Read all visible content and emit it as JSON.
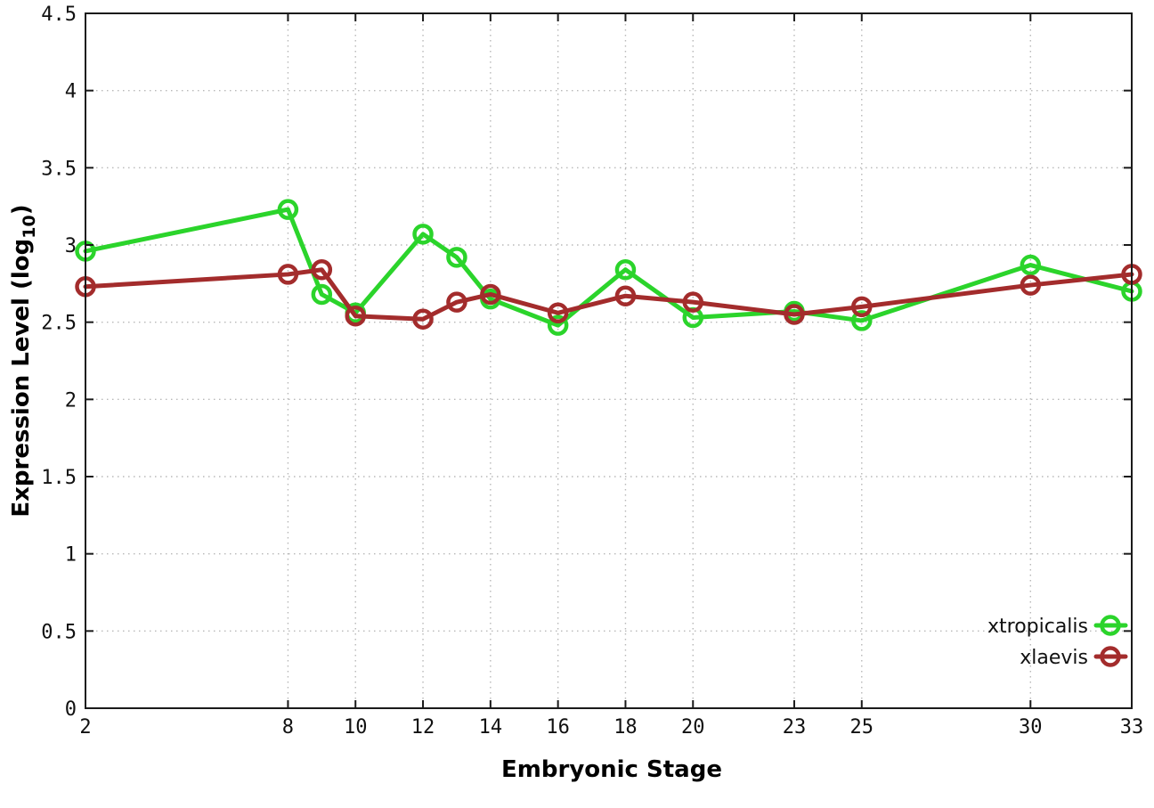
{
  "page": {
    "background_color": "#ffffff"
  },
  "styles": {
    "grid_color": "#b8b8b8",
    "axis_color": "#1a1a1a",
    "text_color": "#111111"
  },
  "chart_data": {
    "type": "line",
    "title": "",
    "xlabel": "Embryonic Stage",
    "ylabel": "Expression Level (log10)",
    "ylabel_parts": {
      "pre": "Expression Level (log",
      "sub": "10",
      "post": ")"
    },
    "xlim": [
      2,
      33
    ],
    "ylim": [
      0,
      4.5
    ],
    "grid": true,
    "legend_position": "inside-bottom-right",
    "xticks": [
      2,
      8,
      10,
      12,
      14,
      16,
      18,
      20,
      23,
      25,
      30,
      33
    ],
    "xtick_labels": [
      "2",
      "8",
      "10",
      "12",
      "14",
      "16",
      "18",
      "20",
      "23",
      "25",
      "30",
      "33"
    ],
    "yticks": [
      0,
      0.5,
      1,
      1.5,
      2,
      2.5,
      3,
      3.5,
      4,
      4.5
    ],
    "ytick_labels": [
      "0",
      "0.5",
      "1",
      "1.5",
      "2",
      "2.5",
      "3",
      "3.5",
      "4",
      "4.5"
    ],
    "x": [
      2,
      8,
      9,
      10,
      12,
      13,
      14,
      16,
      18,
      20,
      23,
      25,
      30,
      33
    ],
    "series": [
      {
        "name": "xtropicalis",
        "color": "#2bd42b",
        "marker": "open-circle",
        "values": [
          2.96,
          3.23,
          2.68,
          2.56,
          3.07,
          2.92,
          2.65,
          2.48,
          2.84,
          2.53,
          2.57,
          2.51,
          2.87,
          2.7
        ]
      },
      {
        "name": "xlaevis",
        "color": "#a32c2c",
        "marker": "open-circle",
        "values": [
          2.73,
          2.81,
          2.84,
          2.54,
          2.52,
          2.63,
          2.68,
          2.56,
          2.67,
          2.63,
          2.55,
          2.6,
          2.74,
          2.81
        ]
      }
    ]
  }
}
